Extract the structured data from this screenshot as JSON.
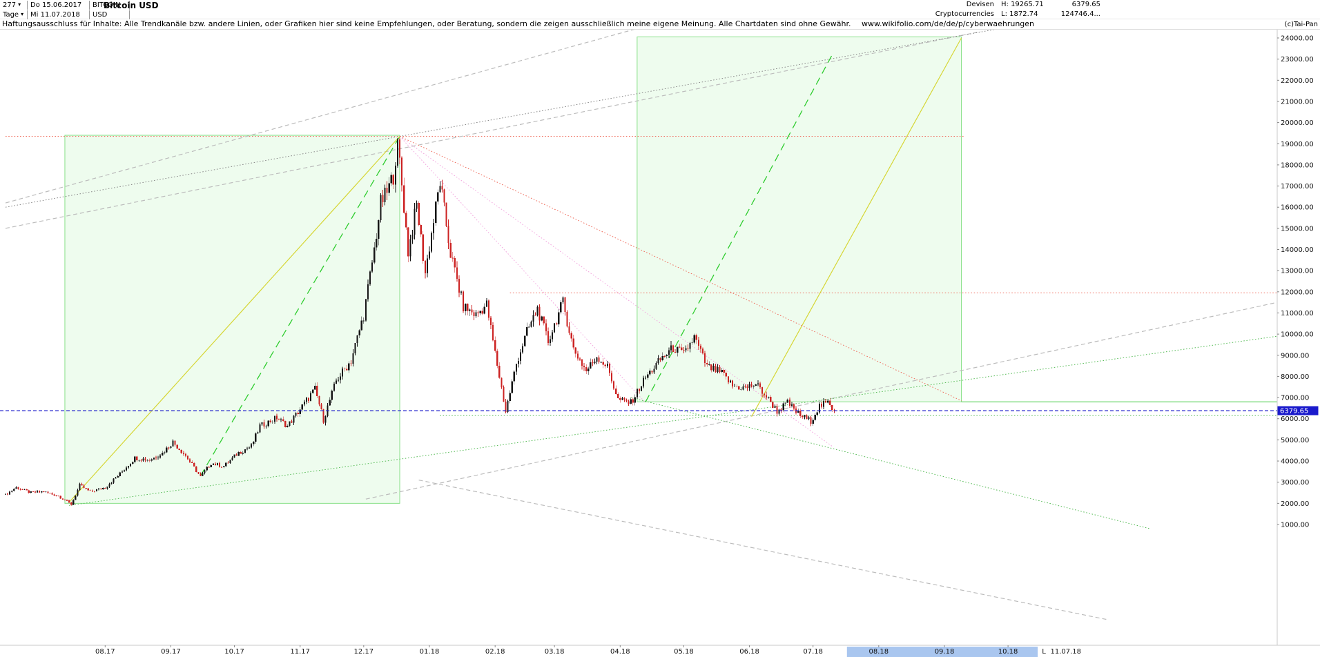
{
  "header": {
    "bar_count": "277",
    "dropdown_arrow": "▾",
    "start_date": "Do 15.06.2017",
    "end_date": "Mi 11.07.2018",
    "timeframe": "Tage",
    "symbol": "BITCOIN",
    "currency": "USD",
    "title": "Bitcoin USD",
    "category1": "Devisen",
    "category2": "Cryptocurrencies",
    "high_label": "H: 19265.71",
    "low_label": "L: 1872.74",
    "last_quote": "6379.65",
    "volume": "124746.4...",
    "copyright": "(c)Tai-Pan"
  },
  "disclaimer": {
    "text": "Haftungsausschluss für Inhalte: Alle Trendkanäle bzw. andere Linien, oder Grafiken hier sind keine Empfehlungen, oder Beratung, sondern die zeigen ausschließlich meine eigene Meinung. Alle Chartdaten sind ohne Gewähr.",
    "link": "www.wikifolio.com/de/de/p/cyberwaehrungen"
  },
  "chart_data": {
    "type": "candlestick",
    "title": "Bitcoin USD",
    "instrument": "BITCOIN USD",
    "period": "Tage",
    "high": 19265.71,
    "low": 1872.74,
    "last": 6379.65,
    "first_date": "15.06.2017",
    "last_date": "11.07.2018",
    "last_day": 391,
    "y_axis": {
      "min": 1000,
      "max": 24000,
      "step": 1000,
      "side": "right"
    },
    "x_ticks": [
      {
        "label": "08.17",
        "day": 47
      },
      {
        "label": "09.17",
        "day": 78
      },
      {
        "label": "10.17",
        "day": 108
      },
      {
        "label": "11.17",
        "day": 139
      },
      {
        "label": "12.17",
        "day": 169
      },
      {
        "label": "01.18",
        "day": 200
      },
      {
        "label": "02.18",
        "day": 231
      },
      {
        "label": "03.18",
        "day": 259
      },
      {
        "label": "04.18",
        "day": 290
      },
      {
        "label": "05.18",
        "day": 320
      },
      {
        "label": "06.18",
        "day": 351
      },
      {
        "label": "07.18",
        "day": 381
      },
      {
        "label": "08.18",
        "day": 412
      },
      {
        "label": "09.18",
        "day": 443
      },
      {
        "label": "10.18",
        "day": 473
      }
    ],
    "last_marker": {
      "l_label": "L",
      "date_label": "11.07.18",
      "l_day": 489,
      "date_day": 493
    },
    "future_highlight": {
      "day_start": 397,
      "day_end": 487
    },
    "anchors": [
      [
        0,
        2400
      ],
      [
        5,
        2750
      ],
      [
        12,
        2500
      ],
      [
        18,
        2550
      ],
      [
        25,
        2350
      ],
      [
        31,
        1950
      ],
      [
        35,
        2850
      ],
      [
        40,
        2550
      ],
      [
        47,
        2750
      ],
      [
        54,
        3400
      ],
      [
        61,
        4150
      ],
      [
        68,
        4050
      ],
      [
        74,
        4380
      ],
      [
        79,
        4900
      ],
      [
        85,
        4250
      ],
      [
        92,
        3250
      ],
      [
        97,
        3900
      ],
      [
        103,
        3750
      ],
      [
        110,
        4400
      ],
      [
        116,
        4700
      ],
      [
        120,
        5650
      ],
      [
        128,
        6050
      ],
      [
        133,
        5650
      ],
      [
        139,
        6450
      ],
      [
        146,
        7400
      ],
      [
        150,
        5950
      ],
      [
        156,
        7800
      ],
      [
        163,
        8750
      ],
      [
        169,
        10900
      ],
      [
        174,
        14000
      ],
      [
        177,
        16200
      ],
      [
        180,
        16700
      ],
      [
        183,
        17500
      ],
      [
        185,
        19200
      ],
      [
        190,
        13900
      ],
      [
        194,
        16100
      ],
      [
        198,
        12900
      ],
      [
        205,
        17200
      ],
      [
        210,
        13800
      ],
      [
        216,
        11300
      ],
      [
        222,
        10900
      ],
      [
        227,
        11400
      ],
      [
        231,
        9100
      ],
      [
        236,
        6350
      ],
      [
        241,
        8600
      ],
      [
        246,
        10100
      ],
      [
        251,
        11200
      ],
      [
        256,
        9650
      ],
      [
        263,
        11500
      ],
      [
        268,
        9300
      ],
      [
        274,
        8250
      ],
      [
        279,
        8950
      ],
      [
        284,
        8450
      ],
      [
        289,
        6900
      ],
      [
        295,
        6750
      ],
      [
        302,
        7950
      ],
      [
        310,
        8900
      ],
      [
        315,
        9350
      ],
      [
        320,
        9050
      ],
      [
        325,
        9850
      ],
      [
        331,
        8450
      ],
      [
        338,
        8150
      ],
      [
        343,
        7550
      ],
      [
        349,
        7450
      ],
      [
        354,
        7650
      ],
      [
        361,
        6800
      ],
      [
        364,
        6350
      ],
      [
        369,
        6750
      ],
      [
        375,
        6150
      ],
      [
        380,
        5900
      ],
      [
        384,
        6600
      ],
      [
        388,
        6750
      ],
      [
        391,
        6379.65
      ]
    ],
    "boxes": [
      {
        "name": "trend-box-2017",
        "d0": 28,
        "d1": 186,
        "p0": 2000,
        "p1": 19400
      },
      {
        "name": "trend-box-2018",
        "d0": 298,
        "d1": 451,
        "p0": 6800,
        "p1": 24050
      }
    ],
    "lines": [
      {
        "name": "resistance-19350",
        "color": "#ef6a5a",
        "style": "dotted",
        "w": 1,
        "from": [
          0,
          19350
        ],
        "to": [
          452,
          19350
        ]
      },
      {
        "name": "resistance-11950",
        "color": "#ef6a5a",
        "style": "dotted",
        "w": 1,
        "from": [
          238,
          11950
        ],
        "to": [
          600,
          11950
        ]
      },
      {
        "name": "support-green-6150",
        "color": "#55bb55",
        "style": "dotted",
        "w": 1,
        "from": [
          205,
          6150
        ],
        "to": [
          600,
          6150
        ]
      },
      {
        "name": "green-level-6800",
        "color": "#44cc44",
        "style": "solid",
        "w": 1,
        "from": [
          451,
          6800
        ],
        "to": [
          600,
          6800
        ]
      },
      {
        "name": "gray-channel-upper",
        "color": "#bcbcbc",
        "style": "dashed",
        "w": 1.2,
        "from": [
          0,
          16200
        ],
        "to": [
          300,
          24500
        ]
      },
      {
        "name": "gray-channel-lower",
        "color": "#bcbcbc",
        "style": "dashed",
        "w": 1.2,
        "from": [
          0,
          15000
        ],
        "to": [
          460,
          24300
        ]
      },
      {
        "name": "gray-support-rising",
        "color": "#bcbcbc",
        "style": "dashed",
        "w": 1.2,
        "from": [
          170,
          2200
        ],
        "to": [
          600,
          11500
        ]
      },
      {
        "name": "gray-falling-low",
        "color": "#bcbcbc",
        "style": "dashed",
        "w": 1.2,
        "from": [
          195,
          3100
        ],
        "to": [
          520,
          -3500
        ]
      },
      {
        "name": "dark-dotted-rising",
        "color": "#888888",
        "style": "dotted",
        "w": 1,
        "from": [
          0,
          16000
        ],
        "to": [
          600,
          26800
        ]
      },
      {
        "name": "uptrend-2017-green",
        "color": "#2ecc2e",
        "style": "longdash",
        "w": 1.3,
        "from": [
          92,
          3300
        ],
        "to": [
          186,
          19350
        ]
      },
      {
        "name": "uptrend-2017-yellow",
        "color": "#d6d635",
        "style": "solid",
        "w": 1.2,
        "from": [
          30,
          2050
        ],
        "to": [
          186,
          19350
        ]
      },
      {
        "name": "uptrend-2018-green",
        "color": "#2ecc2e",
        "style": "longdash",
        "w": 1.3,
        "from": [
          302,
          6800
        ],
        "to": [
          390,
          23200
        ]
      },
      {
        "name": "uptrend-2018-yellow",
        "color": "#d6d635",
        "style": "solid",
        "w": 1.2,
        "from": [
          352,
          6100
        ],
        "to": [
          451,
          24000
        ]
      },
      {
        "name": "downtrend-pink-steep",
        "color": "#f2a6de",
        "style": "dotted",
        "w": 1,
        "from": [
          186,
          19350
        ],
        "to": [
          302,
          6750
        ]
      },
      {
        "name": "downtrend-pink-long",
        "color": "#f2a6de",
        "style": "dotted",
        "w": 1,
        "from": [
          186,
          19350
        ],
        "to": [
          390,
          4700
        ]
      },
      {
        "name": "downtrend-red",
        "color": "#ef6a5a",
        "style": "dotted",
        "w": 1,
        "from": [
          186,
          19350
        ],
        "to": [
          451,
          6850
        ]
      },
      {
        "name": "green-fan-long",
        "color": "#55bb55",
        "style": "dotted",
        "w": 1,
        "from": [
          30,
          1900
        ],
        "to": [
          600,
          9900
        ]
      },
      {
        "name": "green-fan-desc",
        "color": "#55bb55",
        "style": "dotted",
        "w": 1,
        "from": [
          295,
          7000
        ],
        "to": [
          540,
          800
        ]
      }
    ],
    "current_price_line": {
      "color": "#2222cc",
      "style": "dashed"
    },
    "colors": {
      "up": "#151515",
      "down": "#cc2222",
      "box_fill": "rgba(150,235,150,0.16)",
      "box_stroke": "#85df85",
      "axis_text": "#111111",
      "tag_bg": "#1a1acc",
      "tag_text": "#ffffff",
      "future_strip": "#a9c6ef"
    }
  }
}
